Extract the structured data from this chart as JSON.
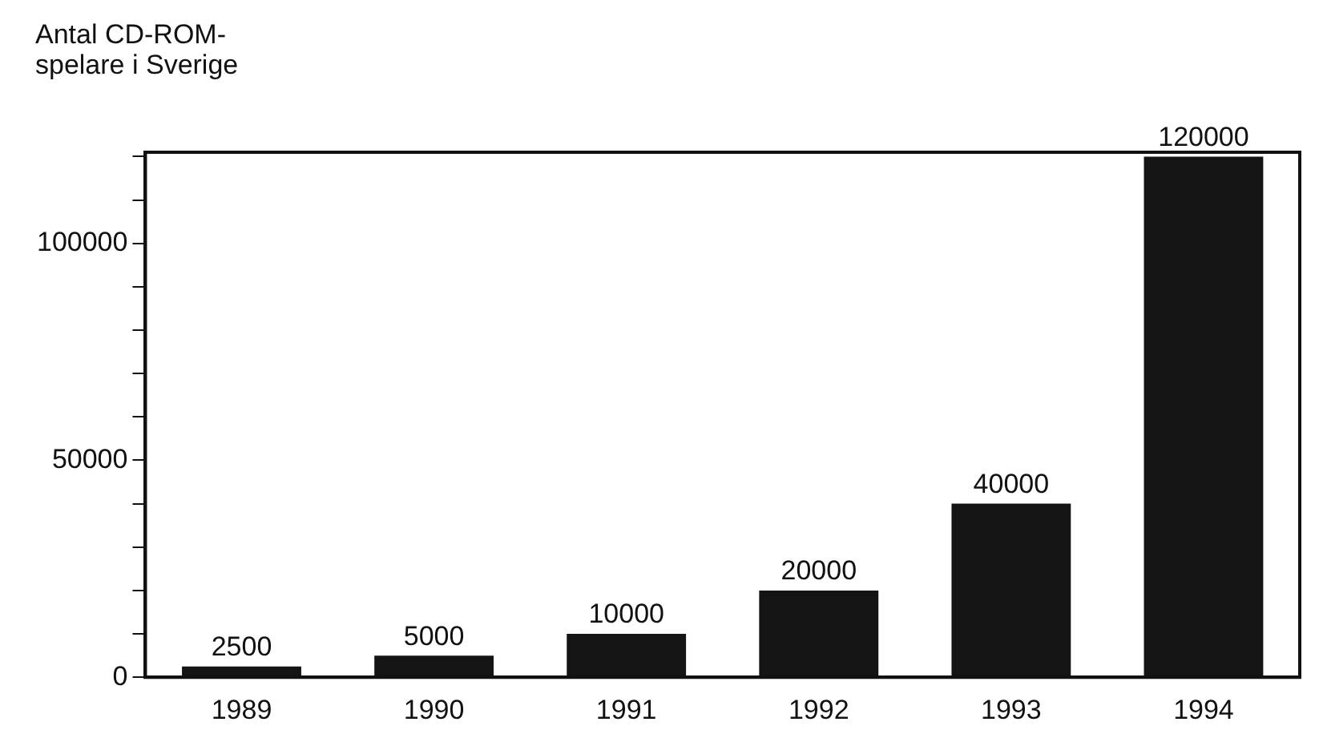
{
  "chart_data": {
    "type": "bar",
    "ylabel": "Antal CD-ROM-spelare i Sverige",
    "categories": [
      "1989",
      "1990",
      "1991",
      "1992",
      "1993",
      "1994"
    ],
    "values": [
      2500,
      5000,
      10000,
      20000,
      40000,
      120000
    ],
    "color": "#141414",
    "data_labels": true,
    "ylim": [
      0,
      121000
    ],
    "yticks": [
      0,
      {
        "value": 10000,
        "label": null
      },
      {
        "value": 20000,
        "label": null
      },
      {
        "value": 30000,
        "label": null
      },
      {
        "value": 40000,
        "label": null
      },
      50000,
      {
        "value": 60000,
        "label": null
      },
      {
        "value": 70000,
        "label": null
      },
      {
        "value": 80000,
        "label": null
      },
      {
        "value": 90000,
        "label": null
      },
      100000,
      {
        "value": 110000,
        "label": null
      },
      {
        "value": 120000,
        "label": null
      }
    ],
    "legend": false
  }
}
